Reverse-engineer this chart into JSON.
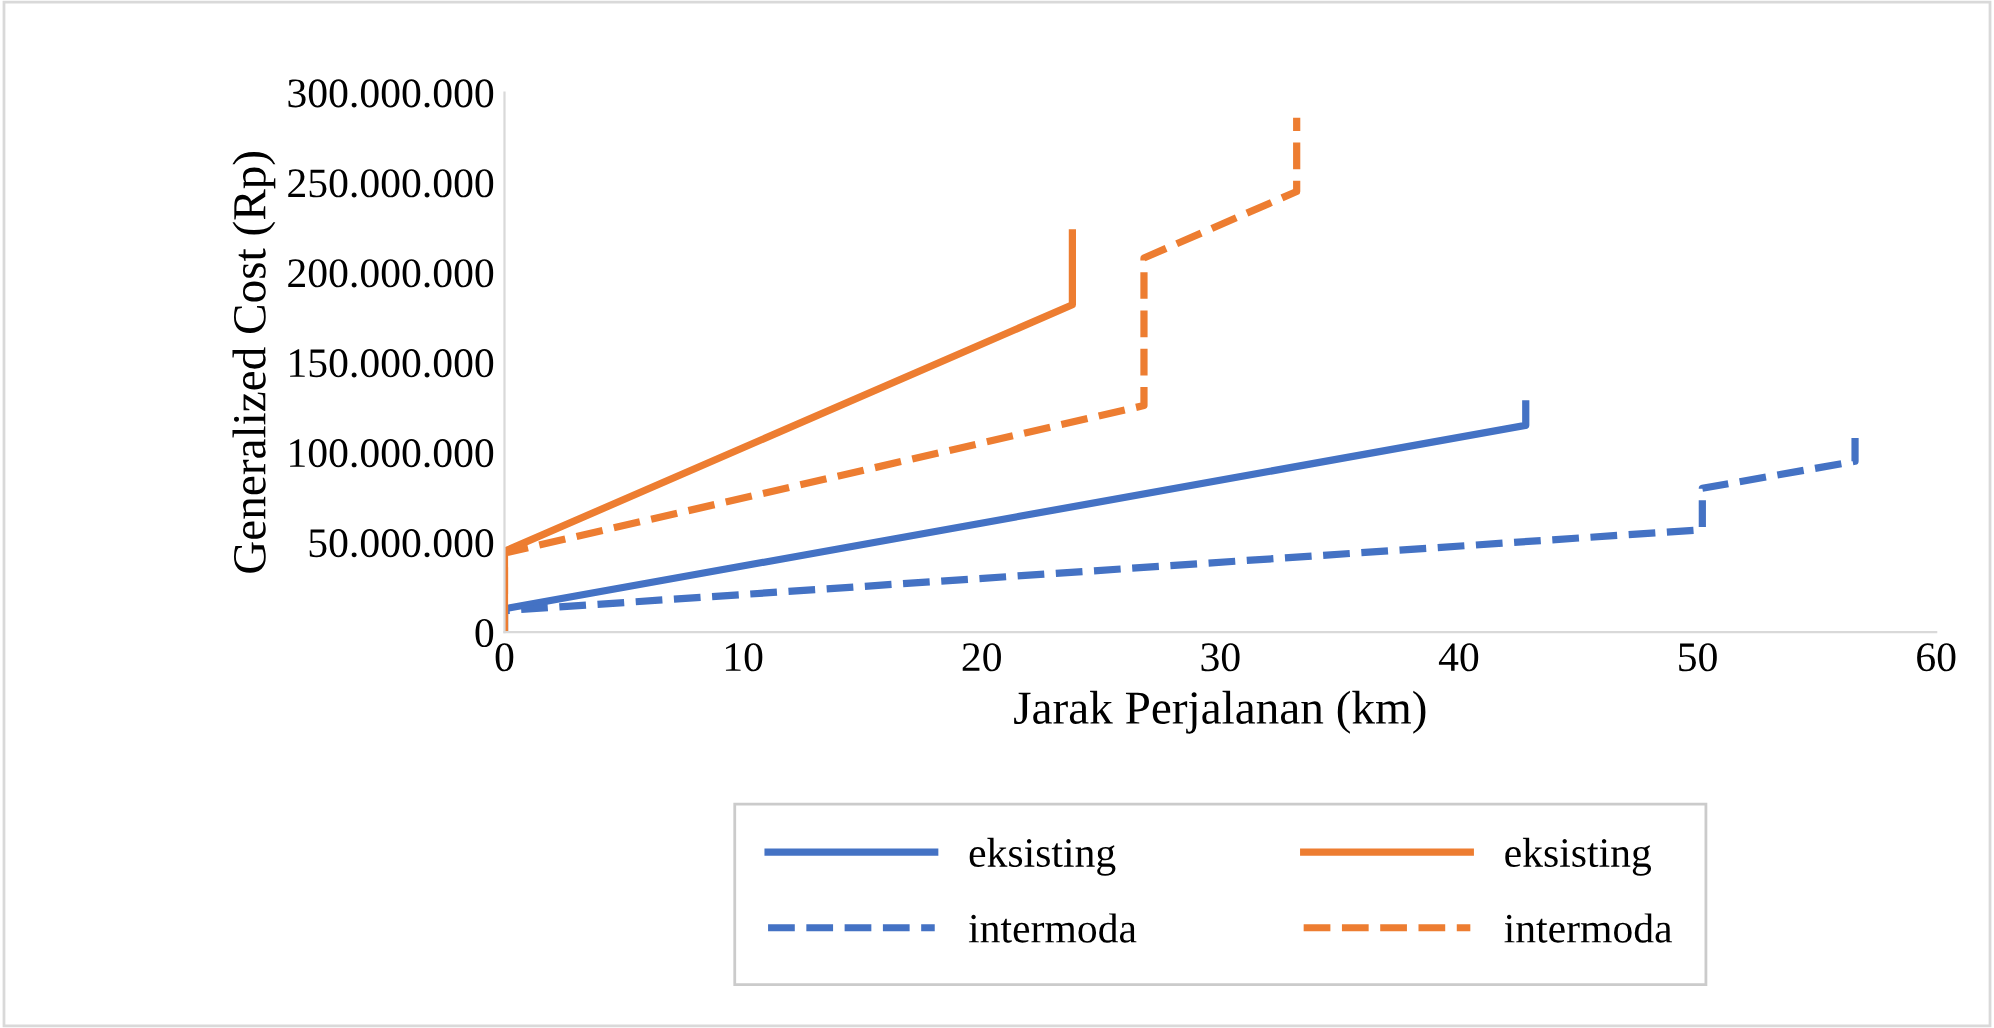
{
  "chart_data": {
    "type": "line",
    "xlabel": "Jarak Perjalanan (km)",
    "ylabel": "Generalized Cost (Rp)",
    "xlim": [
      0,
      60
    ],
    "xticks": [
      0,
      10,
      20,
      30,
      40,
      50,
      60
    ],
    "ylim": [
      0,
      300000000
    ],
    "yticks": [
      {
        "value": 0,
        "label": "0"
      },
      {
        "value": 50000000,
        "label": "50.000.000"
      },
      {
        "value": 100000000,
        "label": "100.000.000"
      },
      {
        "value": 150000000,
        "label": "150.000.000"
      },
      {
        "value": 200000000,
        "label": "200.000.000"
      },
      {
        "value": 250000000,
        "label": "250.000.000"
      },
      {
        "value": 300000000,
        "label": "300.000.000"
      }
    ],
    "grid": false,
    "legend": "bottom",
    "marker": "none",
    "series": [
      {
        "name": "eksisting",
        "color": "#4472c4",
        "line_style": "solid",
        "x": [
          0,
          0,
          42.8,
          42.8
        ],
        "values": [
          0,
          13000000,
          115000000,
          127000000
        ]
      },
      {
        "name": "intermoda",
        "color": "#4472c4",
        "line_style": "dashed",
        "x": [
          0,
          0,
          50.2,
          50.2,
          56.6,
          56.6
        ],
        "values": [
          0,
          12000000,
          57000000,
          80000000,
          95000000,
          108000000
        ]
      },
      {
        "name": "eksisting",
        "color": "#ed7d31",
        "line_style": "solid",
        "x": [
          0,
          0,
          23.8,
          23.8
        ],
        "values": [
          0,
          45000000,
          182000000,
          222000000
        ]
      },
      {
        "name": "intermoda",
        "color": "#ed7d31",
        "line_style": "dashed",
        "x": [
          0,
          0,
          26.8,
          26.8,
          33.2,
          33.2
        ],
        "values": [
          0,
          44000000,
          126000000,
          208000000,
          245000000,
          286000000
        ]
      }
    ]
  }
}
